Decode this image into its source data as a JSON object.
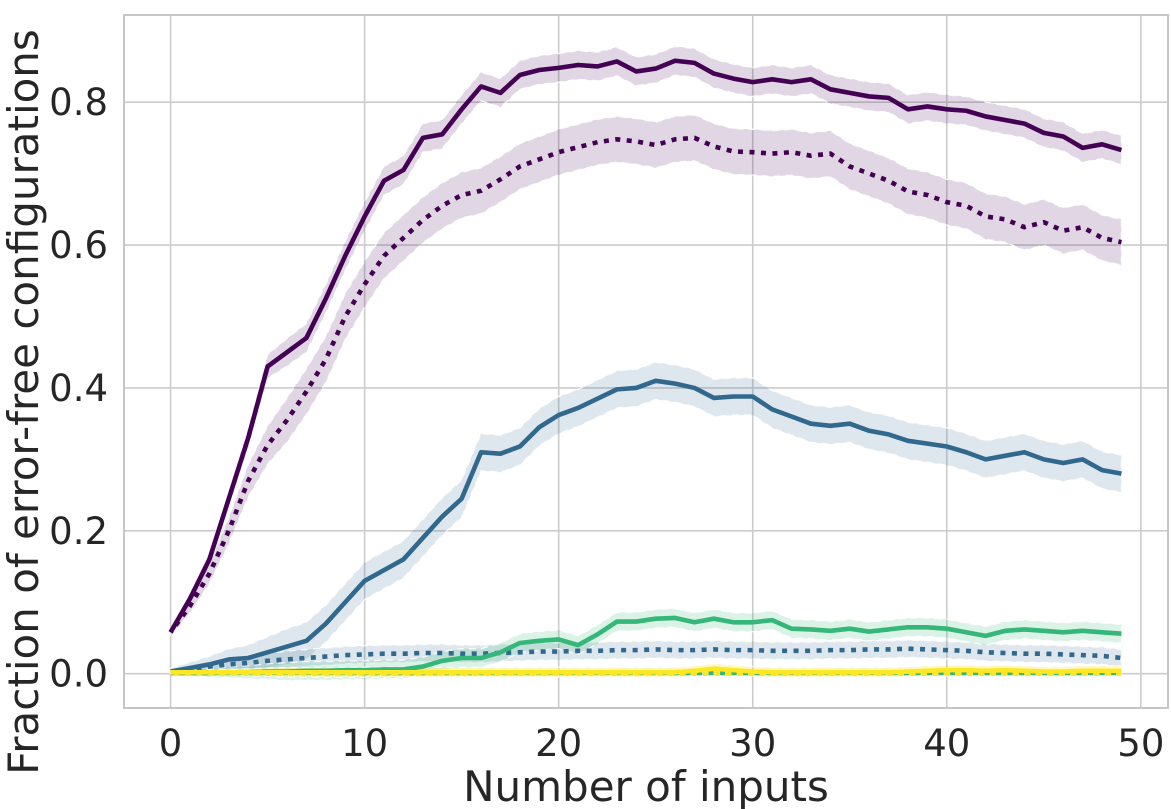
{
  "figure": {
    "background": "#ffffff",
    "text_color": "#262626",
    "grid_color": "#cccccc",
    "spine_color": "#c6c6c6"
  },
  "chart_data": {
    "type": "line",
    "title": "",
    "xlabel": "Number of inputs",
    "ylabel": "Fraction of error-free configurations",
    "xlim": [
      -2.4,
      51.4
    ],
    "ylim": [
      -0.048,
      0.922
    ],
    "xticks": [
      0,
      10,
      20,
      30,
      40,
      50
    ],
    "xtick_labels": [
      "0",
      "10",
      "20",
      "30",
      "40",
      "50"
    ],
    "yticks": [
      0.0,
      0.2,
      0.4,
      0.6,
      0.8
    ],
    "ytick_labels": [
      "0.0",
      "0.2",
      "0.4",
      "0.6",
      "0.8"
    ],
    "grid": true,
    "legend_position": "none",
    "x": [
      0,
      1,
      2,
      3,
      4,
      5,
      6,
      7,
      8,
      9,
      10,
      11,
      12,
      13,
      14,
      15,
      16,
      17,
      18,
      19,
      20,
      21,
      22,
      23,
      24,
      25,
      26,
      27,
      28,
      29,
      30,
      31,
      32,
      33,
      34,
      35,
      36,
      37,
      38,
      39,
      40,
      41,
      42,
      43,
      44,
      45,
      46,
      47,
      48,
      49
    ],
    "series": [
      {
        "name": "purple-solid",
        "color": "#440154",
        "style": "solid",
        "band_halfwidth": 0.02,
        "band_opacity": 0.16,
        "values": [
          0.058,
          0.105,
          0.16,
          0.245,
          0.33,
          0.43,
          0.45,
          0.47,
          0.525,
          0.585,
          0.64,
          0.69,
          0.705,
          0.75,
          0.755,
          0.79,
          0.822,
          0.813,
          0.838,
          0.845,
          0.848,
          0.852,
          0.85,
          0.857,
          0.843,
          0.847,
          0.858,
          0.855,
          0.84,
          0.833,
          0.828,
          0.832,
          0.828,
          0.832,
          0.818,
          0.813,
          0.808,
          0.806,
          0.79,
          0.794,
          0.79,
          0.788,
          0.78,
          0.775,
          0.77,
          0.757,
          0.752,
          0.736,
          0.741,
          0.733
        ]
      },
      {
        "name": "purple-dotted",
        "color": "#440154",
        "style": "dotted",
        "band_halfwidth": 0.032,
        "band_opacity": 0.16,
        "values": [
          0.058,
          0.095,
          0.14,
          0.2,
          0.27,
          0.32,
          0.355,
          0.395,
          0.44,
          0.5,
          0.545,
          0.585,
          0.61,
          0.635,
          0.655,
          0.67,
          0.676,
          0.692,
          0.71,
          0.72,
          0.73,
          0.737,
          0.744,
          0.748,
          0.745,
          0.74,
          0.748,
          0.75,
          0.738,
          0.731,
          0.73,
          0.728,
          0.73,
          0.725,
          0.728,
          0.71,
          0.7,
          0.69,
          0.675,
          0.67,
          0.66,
          0.655,
          0.64,
          0.636,
          0.625,
          0.632,
          0.62,
          0.625,
          0.61,
          0.604
        ]
      },
      {
        "name": "blue-solid",
        "color": "#31688e",
        "style": "solid",
        "band_halfwidth": 0.026,
        "band_opacity": 0.16,
        "values": [
          0.003,
          0.008,
          0.013,
          0.02,
          0.022,
          0.03,
          0.038,
          0.046,
          0.07,
          0.1,
          0.13,
          0.145,
          0.16,
          0.19,
          0.22,
          0.245,
          0.31,
          0.308,
          0.318,
          0.345,
          0.362,
          0.372,
          0.385,
          0.398,
          0.4,
          0.41,
          0.406,
          0.4,
          0.386,
          0.388,
          0.388,
          0.37,
          0.36,
          0.35,
          0.347,
          0.35,
          0.34,
          0.335,
          0.326,
          0.322,
          0.318,
          0.31,
          0.3,
          0.305,
          0.31,
          0.3,
          0.295,
          0.3,
          0.285,
          0.28
        ]
      },
      {
        "name": "blue-dotted",
        "color": "#31688e",
        "style": "dotted",
        "band_halfwidth": 0.012,
        "band_opacity": 0.16,
        "values": [
          0.002,
          0.006,
          0.01,
          0.013,
          0.015,
          0.018,
          0.02,
          0.022,
          0.024,
          0.026,
          0.027,
          0.028,
          0.028,
          0.029,
          0.029,
          0.028,
          0.028,
          0.029,
          0.03,
          0.031,
          0.031,
          0.032,
          0.032,
          0.033,
          0.033,
          0.034,
          0.033,
          0.033,
          0.034,
          0.033,
          0.033,
          0.032,
          0.032,
          0.032,
          0.033,
          0.033,
          0.034,
          0.034,
          0.035,
          0.034,
          0.033,
          0.032,
          0.03,
          0.029,
          0.028,
          0.028,
          0.027,
          0.026,
          0.025,
          0.022
        ]
      },
      {
        "name": "green-solid",
        "color": "#35b779",
        "style": "solid",
        "band_halfwidth": 0.013,
        "band_opacity": 0.18,
        "values": [
          0.001,
          0.001,
          0.001,
          0.002,
          0.002,
          0.003,
          0.003,
          0.004,
          0.004,
          0.005,
          0.005,
          0.006,
          0.006,
          0.01,
          0.018,
          0.022,
          0.022,
          0.03,
          0.043,
          0.046,
          0.048,
          0.04,
          0.055,
          0.073,
          0.073,
          0.077,
          0.078,
          0.072,
          0.077,
          0.072,
          0.072,
          0.075,
          0.063,
          0.062,
          0.06,
          0.063,
          0.059,
          0.062,
          0.065,
          0.065,
          0.063,
          0.058,
          0.053,
          0.06,
          0.062,
          0.06,
          0.058,
          0.06,
          0.058,
          0.056
        ]
      },
      {
        "name": "green-dotted",
        "color": "#35b779",
        "style": "dotted",
        "band_halfwidth": 0.003,
        "band_opacity": 0.18,
        "values": [
          0.001,
          0.001,
          0.001,
          0.001,
          0.001,
          0.001,
          0.001,
          0.001,
          0.001,
          0.001,
          0.001,
          0.001,
          0.001,
          0.001,
          0.001,
          0.001,
          0.001,
          0.001,
          0.001,
          0.001,
          0.001,
          0.001,
          0.001,
          0.001,
          0.001,
          0.001,
          0.001,
          0.001,
          0.001,
          0.001,
          0.001,
          0.001,
          0.001,
          0.001,
          0.001,
          0.001,
          0.001,
          0.001,
          0.001,
          0.001,
          0.001,
          0.001,
          0.001,
          0.001,
          0.001,
          0.001,
          0.001,
          0.001,
          0.001,
          0.001
        ]
      },
      {
        "name": "yellow-solid",
        "color": "#fde725",
        "style": "solid",
        "band_halfwidth": 0.007,
        "band_opacity": 0.3,
        "values": [
          0.002,
          0.002,
          0.002,
          0.002,
          0.002,
          0.002,
          0.002,
          0.002,
          0.002,
          0.002,
          0.002,
          0.002,
          0.002,
          0.002,
          0.002,
          0.002,
          0.002,
          0.002,
          0.002,
          0.002,
          0.002,
          0.002,
          0.002,
          0.002,
          0.002,
          0.002,
          0.002,
          0.004,
          0.007,
          0.005,
          0.003,
          0.002,
          0.002,
          0.002,
          0.002,
          0.002,
          0.002,
          0.002,
          0.003,
          0.004,
          0.005,
          0.005,
          0.004,
          0.005,
          0.004,
          0.003,
          0.003,
          0.004,
          0.004,
          0.004
        ]
      },
      {
        "name": "yellow-dotted",
        "color": "#fde725",
        "style": "dotted",
        "band_halfwidth": 0.003,
        "band_opacity": 0.3,
        "values": [
          0.0,
          0.0,
          0.0,
          0.0,
          0.0,
          0.0,
          0.0,
          0.0,
          0.0,
          0.0,
          0.0,
          0.0,
          0.0,
          0.0,
          0.0,
          0.0,
          0.0,
          0.0,
          0.0,
          0.0,
          0.0,
          0.0,
          0.0,
          0.0,
          0.0,
          0.0,
          0.0,
          0.0,
          0.0,
          0.0,
          0.0,
          0.0,
          0.0,
          0.0,
          0.0,
          0.0,
          0.0,
          0.0,
          0.0,
          0.0,
          0.0,
          0.0,
          0.0,
          0.0,
          0.0,
          0.0,
          0.0,
          0.0,
          0.0,
          0.0
        ]
      }
    ]
  }
}
